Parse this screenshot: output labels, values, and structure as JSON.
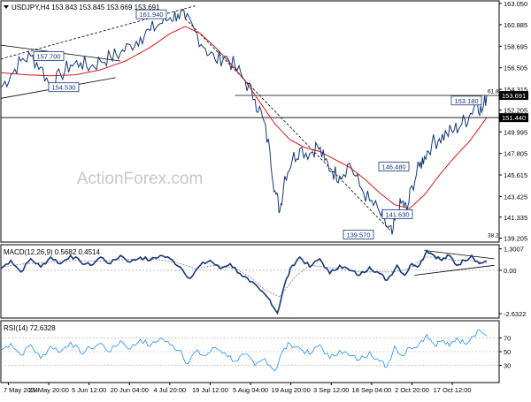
{
  "chart_data": [
    {
      "type": "line",
      "panel": "price",
      "title": "USDJPY,H4  153.843 153.845 153.669 153.691",
      "instrument": "USDJPY",
      "timeframe": "H4",
      "ohlc": {
        "open": 153.843,
        "high": 153.845,
        "low": 153.669,
        "close": 153.691
      },
      "watermark": "ActionForex.com",
      "x_tick_labels": [
        "7 May 2024",
        "21 May 20:00",
        "5 Jun 12:00",
        "20 Jun 04:00",
        "4 Jul 20:00",
        "19 Jul 12:00",
        "5 Aug 04:00",
        "19 Aug 20:00",
        "3 Sep 12:00",
        "18 Sep 04:00",
        "2 Oct 20:00",
        "17 Oct 12:00"
      ],
      "y_tick_labels": [
        "163.050",
        "160.885",
        "158.695",
        "156.505",
        "154.315",
        "152.205",
        "149.995",
        "147.805",
        "145.615",
        "143.425",
        "141.335",
        "139.205"
      ],
      "ylim": [
        138.8,
        163.3
      ],
      "current_price_label": "153.691",
      "level_label_right": "151.440",
      "fib_labels": [
        "61.8",
        "38.2"
      ],
      "annotations": [
        {
          "text": "161.940",
          "value": 161.94
        },
        {
          "text": "157.700",
          "value": 157.7
        },
        {
          "text": "154.530",
          "value": 154.53
        },
        {
          "text": "153.180",
          "value": 153.18
        },
        {
          "text": "146.480",
          "value": 146.48
        },
        {
          "text": "141.630",
          "value": 141.63
        },
        {
          "text": "139.570",
          "value": 139.57
        }
      ],
      "price_path": [
        [
          0,
          154.5
        ],
        [
          4,
          155.8
        ],
        [
          8,
          157.2
        ],
        [
          12,
          157.7
        ],
        [
          16,
          156.6
        ],
        [
          20,
          154.53
        ],
        [
          24,
          155.8
        ],
        [
          28,
          156.8
        ],
        [
          32,
          157.0
        ],
        [
          36,
          156.6
        ],
        [
          40,
          157.2
        ],
        [
          44,
          157.6
        ],
        [
          48,
          158.0
        ],
        [
          52,
          158.8
        ],
        [
          56,
          159.6
        ],
        [
          60,
          160.3
        ],
        [
          64,
          161.0
        ],
        [
          68,
          161.6
        ],
        [
          71,
          161.94
        ],
        [
          74,
          161.5
        ],
        [
          78,
          160.2
        ],
        [
          82,
          158.5
        ],
        [
          86,
          157.3
        ],
        [
          90,
          157.7
        ],
        [
          94,
          156.6
        ],
        [
          98,
          155.2
        ],
        [
          102,
          153.3
        ],
        [
          105,
          151.5
        ],
        [
          108,
          148.0
        ],
        [
          110,
          144.0
        ],
        [
          112,
          142.0
        ],
        [
          114,
          145.5
        ],
        [
          117,
          147.2
        ],
        [
          120,
          148.3
        ],
        [
          124,
          147.8
        ],
        [
          127,
          148.6
        ],
        [
          130,
          147.1
        ],
        [
          133,
          146.0
        ],
        [
          136,
          145.5
        ],
        [
          140,
          146.8
        ],
        [
          144,
          144.5
        ],
        [
          148,
          143.0
        ],
        [
          152,
          141.8
        ],
        [
          155,
          140.4
        ],
        [
          157,
          139.57
        ],
        [
          159,
          141.63
        ],
        [
          161,
          142.9
        ],
        [
          163,
          142.0
        ],
        [
          165,
          144.5
        ],
        [
          168,
          146.48
        ],
        [
          170,
          147.5
        ],
        [
          173,
          148.8
        ],
        [
          176,
          149.3
        ],
        [
          179,
          149.8
        ],
        [
          182,
          150.2
        ],
        [
          185,
          150.8
        ],
        [
          188,
          151.6
        ],
        [
          191,
          153.18
        ],
        [
          193,
          152.0
        ],
        [
          195,
          153.691
        ]
      ],
      "ma_path": [
        [
          0,
          156.0
        ],
        [
          10,
          155.8
        ],
        [
          20,
          155.7
        ],
        [
          30,
          155.8
        ],
        [
          40,
          156.3
        ],
        [
          50,
          157.2
        ],
        [
          60,
          158.6
        ],
        [
          68,
          160.0
        ],
        [
          74,
          160.7
        ],
        [
          80,
          160.0
        ],
        [
          86,
          158.6
        ],
        [
          92,
          157.0
        ],
        [
          98,
          155.2
        ],
        [
          104,
          153.0
        ],
        [
          110,
          150.8
        ],
        [
          116,
          149.2
        ],
        [
          122,
          148.4
        ],
        [
          128,
          148.0
        ],
        [
          134,
          147.2
        ],
        [
          140,
          146.4
        ],
        [
          146,
          145.2
        ],
        [
          152,
          143.8
        ],
        [
          158,
          142.6
        ],
        [
          164,
          142.2
        ],
        [
          170,
          143.6
        ],
        [
          176,
          145.6
        ],
        [
          182,
          147.4
        ],
        [
          188,
          149.0
        ],
        [
          195,
          151.44
        ]
      ],
      "triangle_lines": [
        {
          "from": [
            0,
            158.8
          ],
          "to": [
            48,
            157.2
          ]
        },
        {
          "from": [
            0,
            153.4
          ],
          "to": [
            46,
            155.5
          ]
        },
        {
          "from": [
            0,
            157.4
          ],
          "to": [
            78,
            162.8
          ]
        }
      ],
      "trend_lines": [
        {
          "from": [
            74,
            161.5
          ],
          "to": [
            157,
            139.8
          ]
        },
        {
          "from": [
            94,
            153.7
          ],
          "to": [
            200,
            153.7
          ]
        },
        {
          "from": [
            0,
            151.45
          ],
          "to": [
            200,
            151.45
          ]
        }
      ]
    },
    {
      "type": "line",
      "panel": "macd",
      "title": "MACD(12,26,9) 0.5682 0.4514",
      "params": "12,26,9",
      "macd_value": 0.5682,
      "signal_value": 0.4514,
      "y_tick_labels": [
        "1.3007",
        "0.00",
        "-2.6322"
      ],
      "ylim": [
        -2.9,
        1.55
      ],
      "macd_path": [
        [
          0,
          0.1
        ],
        [
          4,
          0.6
        ],
        [
          8,
          -0.1
        ],
        [
          12,
          0.7
        ],
        [
          16,
          0.2
        ],
        [
          20,
          0.8
        ],
        [
          24,
          0.4
        ],
        [
          28,
          0.9
        ],
        [
          32,
          0.5
        ],
        [
          36,
          0.3
        ],
        [
          40,
          0.8
        ],
        [
          44,
          0.4
        ],
        [
          48,
          0.9
        ],
        [
          52,
          0.5
        ],
        [
          56,
          0.8
        ],
        [
          60,
          0.6
        ],
        [
          64,
          0.9
        ],
        [
          68,
          0.7
        ],
        [
          72,
          0.2
        ],
        [
          76,
          -0.5
        ],
        [
          80,
          0.3
        ],
        [
          84,
          0.6
        ],
        [
          88,
          0.1
        ],
        [
          92,
          0.4
        ],
        [
          96,
          -0.2
        ],
        [
          100,
          -0.7
        ],
        [
          104,
          -1.2
        ],
        [
          108,
          -1.8
        ],
        [
          111,
          -2.6
        ],
        [
          114,
          -0.8
        ],
        [
          117,
          0.3
        ],
        [
          120,
          0.8
        ],
        [
          124,
          0.2
        ],
        [
          128,
          0.7
        ],
        [
          132,
          -0.2
        ],
        [
          136,
          0.3
        ],
        [
          140,
          0.0
        ],
        [
          144,
          -0.3
        ],
        [
          148,
          0.2
        ],
        [
          152,
          -0.2
        ],
        [
          155,
          -0.6
        ],
        [
          159,
          0.3
        ],
        [
          162,
          -0.3
        ],
        [
          165,
          0.4
        ],
        [
          168,
          0.3
        ],
        [
          171,
          1.2
        ],
        [
          174,
          0.9
        ],
        [
          177,
          0.6
        ],
        [
          180,
          0.9
        ],
        [
          183,
          0.3
        ],
        [
          186,
          0.6
        ],
        [
          189,
          0.9
        ],
        [
          192,
          0.4
        ],
        [
          195,
          0.57
        ]
      ],
      "signal_path": [
        [
          0,
          0.2
        ],
        [
          10,
          0.4
        ],
        [
          20,
          0.5
        ],
        [
          30,
          0.6
        ],
        [
          40,
          0.55
        ],
        [
          50,
          0.65
        ],
        [
          60,
          0.7
        ],
        [
          70,
          0.5
        ],
        [
          78,
          0.1
        ],
        [
          86,
          0.3
        ],
        [
          94,
          0.1
        ],
        [
          100,
          -0.4
        ],
        [
          106,
          -1.2
        ],
        [
          112,
          -1.6
        ],
        [
          118,
          -0.4
        ],
        [
          124,
          0.3
        ],
        [
          130,
          0.2
        ],
        [
          136,
          0.1
        ],
        [
          144,
          -0.1
        ],
        [
          152,
          -0.1
        ],
        [
          158,
          -0.1
        ],
        [
          164,
          0.1
        ],
        [
          170,
          0.8
        ],
        [
          176,
          0.8
        ],
        [
          182,
          0.6
        ],
        [
          188,
          0.6
        ],
        [
          195,
          0.45
        ]
      ],
      "triangle_lines": [
        {
          "from": [
            166,
            -0.3
          ],
          "to": [
            198,
            0.3
          ]
        },
        {
          "from": [
            170,
            1.2
          ],
          "to": [
            198,
            0.7
          ]
        }
      ]
    },
    {
      "type": "line",
      "panel": "rsi",
      "title": "RSI(14) 72.6328",
      "period": 14,
      "rsi_value": 72.6328,
      "y_tick_labels": [
        "70",
        "50",
        "30"
      ],
      "ylim": [
        5,
        95
      ],
      "rsi_path": [
        [
          0,
          52
        ],
        [
          4,
          62
        ],
        [
          8,
          45
        ],
        [
          12,
          60
        ],
        [
          16,
          40
        ],
        [
          20,
          58
        ],
        [
          24,
          50
        ],
        [
          28,
          64
        ],
        [
          32,
          48
        ],
        [
          36,
          55
        ],
        [
          40,
          62
        ],
        [
          44,
          50
        ],
        [
          48,
          66
        ],
        [
          52,
          54
        ],
        [
          56,
          68
        ],
        [
          60,
          58
        ],
        [
          64,
          70
        ],
        [
          68,
          60
        ],
        [
          72,
          52
        ],
        [
          75,
          32
        ],
        [
          78,
          50
        ],
        [
          82,
          44
        ],
        [
          86,
          56
        ],
        [
          90,
          48
        ],
        [
          94,
          36
        ],
        [
          98,
          46
        ],
        [
          102,
          30
        ],
        [
          106,
          40
        ],
        [
          110,
          22
        ],
        [
          113,
          50
        ],
        [
          116,
          62
        ],
        [
          120,
          55
        ],
        [
          124,
          46
        ],
        [
          128,
          60
        ],
        [
          132,
          40
        ],
        [
          136,
          52
        ],
        [
          140,
          44
        ],
        [
          144,
          38
        ],
        [
          148,
          50
        ],
        [
          152,
          36
        ],
        [
          155,
          28
        ],
        [
          158,
          58
        ],
        [
          161,
          44
        ],
        [
          164,
          56
        ],
        [
          168,
          62
        ],
        [
          171,
          75
        ],
        [
          174,
          60
        ],
        [
          177,
          66
        ],
        [
          180,
          58
        ],
        [
          183,
          70
        ],
        [
          186,
          62
        ],
        [
          189,
          72
        ],
        [
          192,
          82
        ],
        [
          195,
          72.6
        ]
      ]
    }
  ]
}
